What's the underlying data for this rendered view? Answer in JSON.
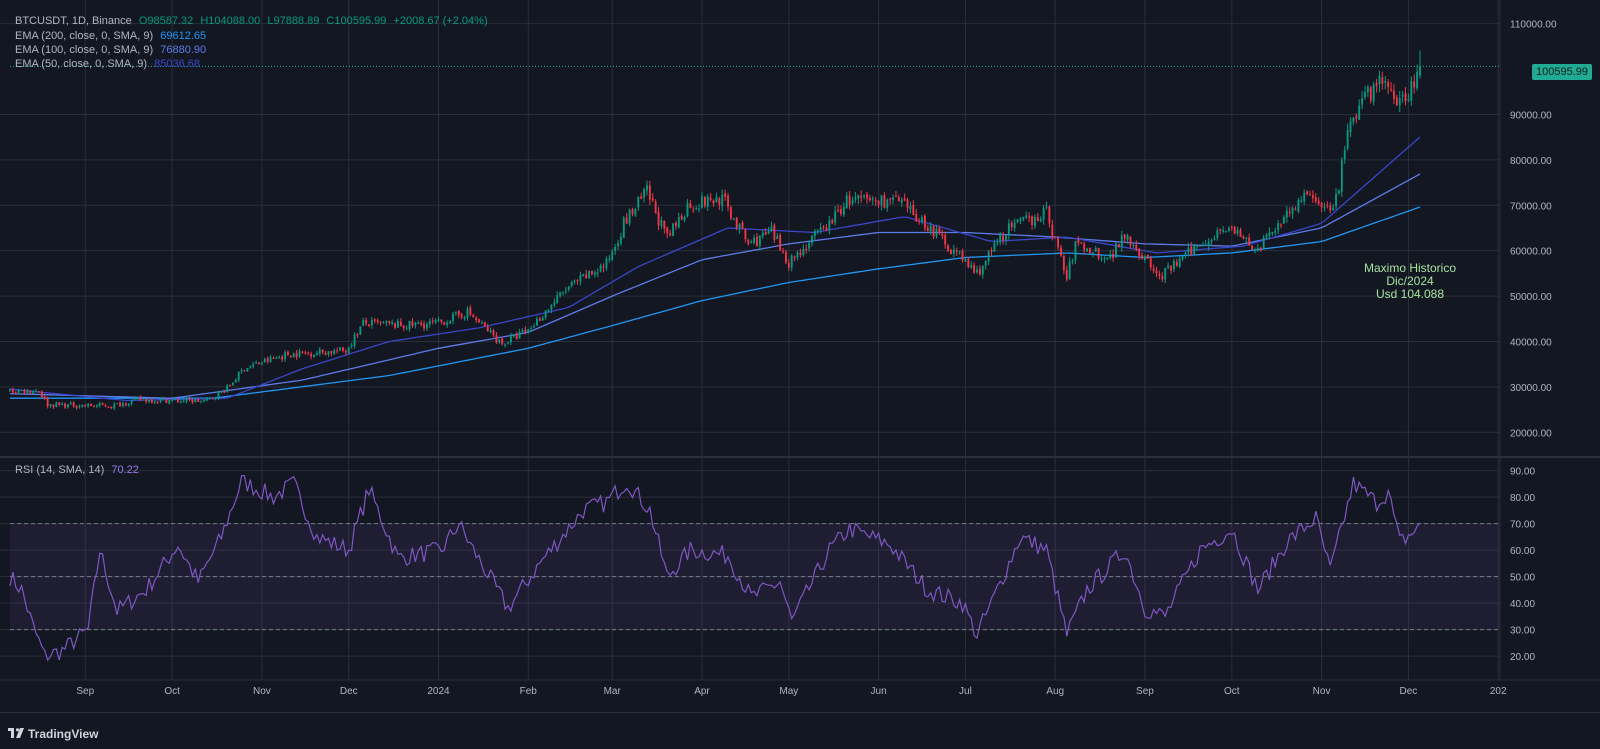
{
  "header": {
    "symbol": "BTCUSDT, 1D, Binance",
    "open": "O98587.32",
    "high": "H104088.00",
    "low": "L97888.89",
    "close": "C100595.99",
    "change": "+2008.67 (+2.04%)"
  },
  "indicators": [
    {
      "label": "EMA (200, close, 0, SMA, 9)",
      "value": "69612.65",
      "color": "#2196f3"
    },
    {
      "label": "EMA (100, close, 0, SMA, 9)",
      "value": "76880.90",
      "color": "#5d7be8"
    },
    {
      "label": "EMA (50, close, 0, SMA, 9)",
      "value": "85036.68",
      "color": "#3a45c8"
    }
  ],
  "rsi_legend": {
    "label": "RSI (14, SMA, 14)",
    "value": "70.22"
  },
  "last_price_tag": "100595.99",
  "annotation": [
    "Maximo Historico",
    "Dic/2024",
    "Usd 104.088"
  ],
  "branding": "TradingView",
  "colors": {
    "up": "#089981",
    "down": "#f23645",
    "rsi": "#7e57c2",
    "bg": "#131722",
    "grid": "#2a2e39"
  },
  "chart_data": [
    {
      "type": "candlestick",
      "title": "BTCUSDT, 1D, Binance",
      "x_ticks": [
        "Sep",
        "Oct",
        "Nov",
        "Dec",
        "2024",
        "Feb",
        "Mar",
        "Apr",
        "May",
        "Jun",
        "Jul",
        "Aug",
        "Sep",
        "Oct",
        "Nov",
        "Dec",
        "202"
      ],
      "y_ticks": [
        "110000.00",
        "90000.00",
        "80000.00",
        "70000.00",
        "60000.00",
        "50000.00",
        "40000.00",
        "30000.00",
        "20000.00"
      ],
      "ylim": [
        15000,
        113000
      ],
      "close_path": [
        [
          "2023-08-06",
          29100
        ],
        [
          "2023-08-16",
          29200
        ],
        [
          "2023-08-19",
          26100
        ],
        [
          "2023-09-01",
          25900
        ],
        [
          "2023-09-10",
          25800
        ],
        [
          "2023-09-19",
          27200
        ],
        [
          "2023-10-01",
          27000
        ],
        [
          "2023-10-13",
          26900
        ],
        [
          "2023-10-20",
          29700
        ],
        [
          "2023-10-26",
          34200
        ],
        [
          "2023-11-10",
          37200
        ],
        [
          "2023-11-30",
          38000
        ],
        [
          "2023-12-06",
          44000
        ],
        [
          "2023-12-20",
          43500
        ],
        [
          "2024-01-01",
          44000
        ],
        [
          "2024-01-11",
          46500
        ],
        [
          "2024-01-23",
          39500
        ],
        [
          "2024-02-01",
          42500
        ],
        [
          "2024-02-14",
          51500
        ],
        [
          "2024-02-28",
          57000
        ],
        [
          "2024-03-05",
          66000
        ],
        [
          "2024-03-13",
          73000
        ],
        [
          "2024-03-20",
          62500
        ],
        [
          "2024-03-27",
          70000
        ],
        [
          "2024-04-08",
          71500
        ],
        [
          "2024-04-17",
          61500
        ],
        [
          "2024-04-25",
          64000
        ],
        [
          "2024-05-01",
          57500
        ],
        [
          "2024-05-15",
          66000
        ],
        [
          "2024-05-21",
          71000
        ],
        [
          "2024-06-07",
          71000
        ],
        [
          "2024-06-18",
          65500
        ],
        [
          "2024-07-05",
          55000
        ],
        [
          "2024-07-15",
          64500
        ],
        [
          "2024-07-29",
          68500
        ],
        [
          "2024-08-05",
          54000
        ],
        [
          "2024-08-08",
          61500
        ],
        [
          "2024-08-20",
          58500
        ],
        [
          "2024-08-25",
          64000
        ],
        [
          "2024-09-06",
          54000
        ],
        [
          "2024-09-18",
          60500
        ],
        [
          "2024-09-29",
          65500
        ],
        [
          "2024-10-10",
          60000
        ],
        [
          "2024-10-20",
          68500
        ],
        [
          "2024-10-29",
          72500
        ],
        [
          "2024-11-05",
          68000
        ],
        [
          "2024-11-11",
          88500
        ],
        [
          "2024-11-22",
          98500
        ],
        [
          "2024-11-26",
          92000
        ],
        [
          "2024-12-02",
          96000
        ],
        [
          "2024-12-05",
          100595.99
        ]
      ],
      "series": [
        {
          "name": "EMA (200, close, 0, SMA, 9)",
          "values": [
            [
              "2023-08-06",
              27500
            ],
            [
              "2023-10-15",
              27500
            ],
            [
              "2023-12-15",
              32500
            ],
            [
              "2024-02-01",
              38500
            ],
            [
              "2024-03-01",
              43500
            ],
            [
              "2024-04-01",
              49000
            ],
            [
              "2024-05-01",
              53000
            ],
            [
              "2024-06-01",
              56000
            ],
            [
              "2024-07-01",
              58500
            ],
            [
              "2024-08-05",
              59500
            ],
            [
              "2024-09-01",
              58500
            ],
            [
              "2024-10-01",
              59500
            ],
            [
              "2024-11-01",
              62000
            ],
            [
              "2024-12-05",
              69612.65
            ]
          ]
        },
        {
          "name": "EMA (100, close, 0, SMA, 9)",
          "values": [
            [
              "2023-08-06",
              28500
            ],
            [
              "2023-10-01",
              27500
            ],
            [
              "2023-11-15",
              31500
            ],
            [
              "2024-01-01",
              38500
            ],
            [
              "2024-02-01",
              42000
            ],
            [
              "2024-03-01",
              50000
            ],
            [
              "2024-04-01",
              58000
            ],
            [
              "2024-05-01",
              61500
            ],
            [
              "2024-06-01",
              64000
            ],
            [
              "2024-07-01",
              64000
            ],
            [
              "2024-08-01",
              63000
            ],
            [
              "2024-09-01",
              61500
            ],
            [
              "2024-10-01",
              61000
            ],
            [
              "2024-11-01",
              65000
            ],
            [
              "2024-12-05",
              76880.9
            ]
          ]
        },
        {
          "name": "EMA (50, close, 0, SMA, 9)",
          "values": [
            [
              "2023-08-06",
              29500
            ],
            [
              "2023-09-15",
              27000
            ],
            [
              "2023-10-20",
              27500
            ],
            [
              "2023-11-15",
              34000
            ],
            [
              "2023-12-15",
              40000
            ],
            [
              "2024-01-15",
              43000
            ],
            [
              "2024-02-15",
              47500
            ],
            [
              "2024-03-10",
              56500
            ],
            [
              "2024-04-10",
              65000
            ],
            [
              "2024-05-10",
              64000
            ],
            [
              "2024-06-10",
              67500
            ],
            [
              "2024-07-10",
              62000
            ],
            [
              "2024-08-05",
              63000
            ],
            [
              "2024-09-05",
              59500
            ],
            [
              "2024-10-05",
              61000
            ],
            [
              "2024-11-01",
              66000
            ],
            [
              "2024-12-05",
              85036.68
            ]
          ]
        }
      ],
      "grid": true
    },
    {
      "type": "line",
      "title": "RSI (14, SMA, 14)",
      "y_ticks": [
        "90.00",
        "80.00",
        "70.00",
        "60.00",
        "50.00",
        "40.00",
        "30.00",
        "20.00"
      ],
      "ylim": [
        11,
        94
      ],
      "bands": [
        30,
        50,
        70
      ],
      "series": [
        {
          "name": "RSI (14, SMA, 14)",
          "values": [
            [
              "2023-08-06",
              50
            ],
            [
              "2023-08-10",
              45
            ],
            [
              "2023-08-14",
              31
            ],
            [
              "2023-08-18",
              20
            ],
            [
              "2023-08-24",
              22
            ],
            [
              "2023-09-02",
              30
            ],
            [
              "2023-09-06",
              60
            ],
            [
              "2023-09-12",
              37
            ],
            [
              "2023-09-22",
              45
            ],
            [
              "2023-10-03",
              62
            ],
            [
              "2023-10-10",
              48
            ],
            [
              "2023-10-18",
              65
            ],
            [
              "2023-10-25",
              86
            ],
            [
              "2023-11-05",
              80
            ],
            [
              "2023-11-12",
              85
            ],
            [
              "2023-11-20",
              65
            ],
            [
              "2023-12-01",
              60
            ],
            [
              "2023-12-08",
              83
            ],
            [
              "2023-12-18",
              57
            ],
            [
              "2024-01-02",
              60
            ],
            [
              "2024-01-08",
              70
            ],
            [
              "2024-01-12",
              62
            ],
            [
              "2024-01-25",
              38
            ],
            [
              "2024-02-05",
              55
            ],
            [
              "2024-02-20",
              75
            ],
            [
              "2024-02-28",
              78
            ],
            [
              "2024-03-06",
              86
            ],
            [
              "2024-03-14",
              75
            ],
            [
              "2024-03-20",
              50
            ],
            [
              "2024-03-28",
              60
            ],
            [
              "2024-04-10",
              58
            ],
            [
              "2024-04-18",
              42
            ],
            [
              "2024-04-28",
              48
            ],
            [
              "2024-05-02",
              33
            ],
            [
              "2024-05-15",
              60
            ],
            [
              "2024-05-22",
              68
            ],
            [
              "2024-06-05",
              62
            ],
            [
              "2024-06-18",
              45
            ],
            [
              "2024-06-30",
              40
            ],
            [
              "2024-07-05",
              28
            ],
            [
              "2024-07-10",
              40
            ],
            [
              "2024-07-20",
              65
            ],
            [
              "2024-07-29",
              60
            ],
            [
              "2024-08-05",
              28
            ],
            [
              "2024-08-12",
              45
            ],
            [
              "2024-08-25",
              60
            ],
            [
              "2024-09-01",
              38
            ],
            [
              "2024-09-08",
              35
            ],
            [
              "2024-09-20",
              60
            ],
            [
              "2024-10-01",
              68
            ],
            [
              "2024-10-10",
              45
            ],
            [
              "2024-10-20",
              63
            ],
            [
              "2024-10-30",
              72
            ],
            [
              "2024-11-04",
              52
            ],
            [
              "2024-11-12",
              85
            ],
            [
              "2024-11-20",
              78
            ],
            [
              "2024-11-24",
              82
            ],
            [
              "2024-11-28",
              63
            ],
            [
              "2024-12-02",
              66
            ],
            [
              "2024-12-05",
              70.22
            ]
          ]
        }
      ],
      "grid": true
    }
  ]
}
